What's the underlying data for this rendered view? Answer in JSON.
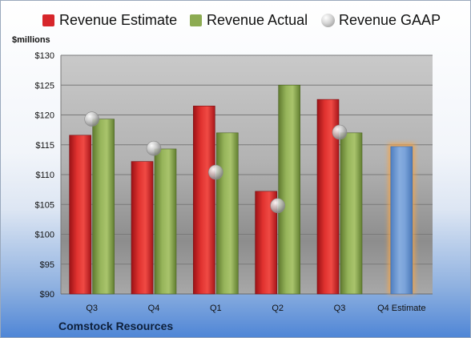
{
  "chart_data": {
    "type": "bar",
    "ylabel": "$millions",
    "ylim": [
      90,
      130
    ],
    "yticks": [
      90,
      95,
      100,
      105,
      110,
      115,
      120,
      125,
      130
    ],
    "ytick_labels": [
      "$90",
      "$95",
      "$100",
      "$105",
      "$110",
      "$115",
      "$120",
      "$125",
      "$130"
    ],
    "categories": [
      "Q3",
      "Q4",
      "Q1",
      "Q2",
      "Q3",
      "Q4 Estimate"
    ],
    "grid": true,
    "legend_position": "top",
    "series": [
      {
        "name": "Revenue Estimate",
        "kind": "bar",
        "color": "#d7262b",
        "values": [
          116.6,
          112.2,
          121.5,
          107.2,
          122.6,
          null
        ]
      },
      {
        "name": "Revenue Actual",
        "kind": "bar",
        "color": "#8cab52",
        "values": [
          119.3,
          114.3,
          117.0,
          125.0,
          117.0,
          null
        ]
      },
      {
        "name": "Revenue GAAP",
        "kind": "marker",
        "color": "#b0b0b0",
        "values": [
          119.3,
          114.4,
          110.4,
          104.8,
          117.1,
          null
        ]
      },
      {
        "name": "",
        "kind": "bar",
        "color": "#6f9bd6",
        "highlight": "#f5a54a",
        "values": [
          null,
          null,
          null,
          null,
          null,
          114.7
        ]
      }
    ]
  },
  "footer": {
    "company": "Comstock Resources"
  }
}
